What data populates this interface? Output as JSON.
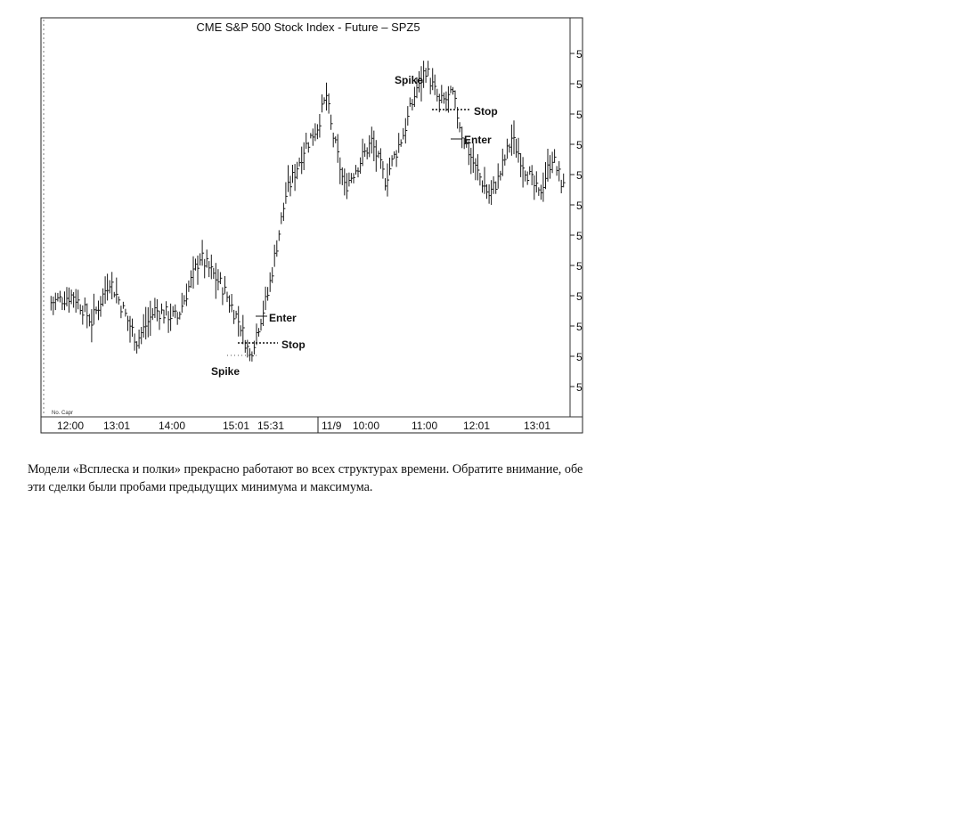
{
  "chart_data": {
    "type": "ohlc-bar",
    "title": "CME  S&P 500  Stock  Index  -  Future  –  SPZ5",
    "corner_label": "No. Capr",
    "x_tick_labels": [
      "12:00",
      "13:01",
      "14:00",
      "15:01",
      "15:31",
      "11/9",
      "10:00",
      "11:00",
      "12:01",
      "13:01"
    ],
    "y_tick_labels": [
      "5",
      "5",
      "5",
      "5",
      "5",
      "5",
      "5",
      "5",
      "5",
      "5",
      "5",
      "5"
    ],
    "ylim": [
      0,
      100
    ],
    "grid": false,
    "legend": "none",
    "series_key_points": [
      {
        "bar": 0,
        "value": 28
      },
      {
        "bar": 10,
        "value": 30
      },
      {
        "bar": 18,
        "value": 23
      },
      {
        "bar": 26,
        "value": 34
      },
      {
        "bar": 38,
        "value": 18
      },
      {
        "bar": 46,
        "value": 26
      },
      {
        "bar": 56,
        "value": 24
      },
      {
        "bar": 66,
        "value": 40
      },
      {
        "bar": 76,
        "value": 32
      },
      {
        "bar": 84,
        "value": 22
      },
      {
        "bar": 88,
        "value": 14
      },
      {
        "bar": 92,
        "value": 22
      },
      {
        "bar": 96,
        "value": 30
      },
      {
        "bar": 104,
        "value": 56
      },
      {
        "bar": 112,
        "value": 68
      },
      {
        "bar": 118,
        "value": 74
      },
      {
        "bar": 122,
        "value": 82
      },
      {
        "bar": 124,
        "value": 74
      },
      {
        "bar": 130,
        "value": 58
      },
      {
        "bar": 136,
        "value": 64
      },
      {
        "bar": 142,
        "value": 70
      },
      {
        "bar": 148,
        "value": 60
      },
      {
        "bar": 156,
        "value": 72
      },
      {
        "bar": 162,
        "value": 84
      },
      {
        "bar": 166,
        "value": 89
      },
      {
        "bar": 172,
        "value": 80
      },
      {
        "bar": 178,
        "value": 82
      },
      {
        "bar": 182,
        "value": 72
      },
      {
        "bar": 188,
        "value": 63
      },
      {
        "bar": 194,
        "value": 56
      },
      {
        "bar": 198,
        "value": 60
      },
      {
        "bar": 204,
        "value": 71
      },
      {
        "bar": 210,
        "value": 63
      },
      {
        "bar": 216,
        "value": 56
      },
      {
        "bar": 222,
        "value": 66
      },
      {
        "bar": 227,
        "value": 58
      }
    ],
    "annotations": [
      {
        "text": "Spike",
        "role": "low-spike"
      },
      {
        "text": "Enter",
        "role": "entry-low"
      },
      {
        "text": "Stop",
        "role": "stop-low"
      },
      {
        "text": "Spike",
        "role": "high-spike"
      },
      {
        "text": "Stop",
        "role": "stop-high"
      },
      {
        "text": "Enter",
        "role": "entry-high"
      }
    ]
  },
  "caption": {
    "text": "Модели «Всплеска и полки» прекрасно работают во всех структурах времени. Обратите внимание, обе эти сделки были пробами предыдущих минимума и максимума."
  }
}
